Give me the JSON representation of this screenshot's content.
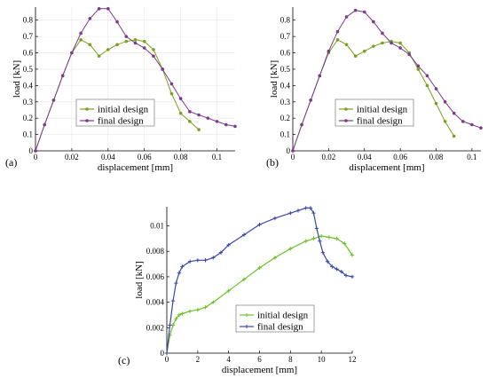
{
  "chart_data": [
    {
      "type": "line",
      "panel_label": "(a)",
      "xlabel": "displacement [mm]",
      "ylabel": "load [kN]",
      "xlim": [
        0,
        0.11
      ],
      "ylim": [
        0,
        0.88
      ],
      "xticks": [
        "0",
        "0.02",
        "0.04",
        "0.06",
        "0.08",
        "0.1"
      ],
      "xtick_values": [
        0,
        0.02,
        0.04,
        0.06,
        0.08,
        0.1
      ],
      "yticks": [
        "0",
        "0.1",
        "0.2",
        "0.3",
        "0.4",
        "0.5",
        "0.6",
        "0.7",
        "0.8"
      ],
      "ytick_values": [
        0,
        0.1,
        0.2,
        0.3,
        0.4,
        0.5,
        0.6,
        0.7,
        0.8
      ],
      "grid": true,
      "legend_position": "lower-center",
      "series": [
        {
          "name": "initial design",
          "color": "#7aa01e",
          "x": [
            0,
            0.005,
            0.01,
            0.015,
            0.02,
            0.025,
            0.03,
            0.035,
            0.04,
            0.045,
            0.05,
            0.055,
            0.06,
            0.065,
            0.07,
            0.075,
            0.08,
            0.085,
            0.09
          ],
          "y": [
            0,
            0.16,
            0.31,
            0.46,
            0.6,
            0.68,
            0.65,
            0.58,
            0.62,
            0.65,
            0.67,
            0.68,
            0.67,
            0.62,
            0.5,
            0.35,
            0.23,
            0.18,
            0.13
          ]
        },
        {
          "name": "final design",
          "color": "#7b3a8c",
          "x": [
            0,
            0.005,
            0.01,
            0.015,
            0.02,
            0.025,
            0.03,
            0.035,
            0.04,
            0.045,
            0.05,
            0.055,
            0.06,
            0.065,
            0.07,
            0.075,
            0.08,
            0.085,
            0.09,
            0.095,
            0.1,
            0.105,
            0.11
          ],
          "y": [
            0,
            0.16,
            0.31,
            0.46,
            0.6,
            0.72,
            0.81,
            0.87,
            0.87,
            0.79,
            0.7,
            0.66,
            0.63,
            0.58,
            0.5,
            0.41,
            0.32,
            0.24,
            0.22,
            0.2,
            0.18,
            0.16,
            0.15
          ]
        }
      ]
    },
    {
      "type": "line",
      "panel_label": "(b)",
      "xlabel": "displacement [mm]",
      "ylabel": "load [kN]",
      "xlim": [
        0,
        0.105
      ],
      "ylim": [
        0,
        0.88
      ],
      "xticks": [
        "0",
        "0.02",
        "0.04",
        "0.06",
        "0.08",
        "0.1"
      ],
      "xtick_values": [
        0,
        0.02,
        0.04,
        0.06,
        0.08,
        0.1
      ],
      "yticks": [
        "0",
        "0.1",
        "0.2",
        "0.3",
        "0.4",
        "0.5",
        "0.6",
        "0.7",
        "0.8"
      ],
      "ytick_values": [
        0,
        0.1,
        0.2,
        0.3,
        0.4,
        0.5,
        0.6,
        0.7,
        0.8
      ],
      "grid": false,
      "legend_position": "lower-center",
      "series": [
        {
          "name": "initial design",
          "color": "#7aa01e",
          "x": [
            0,
            0.005,
            0.01,
            0.015,
            0.02,
            0.025,
            0.03,
            0.035,
            0.04,
            0.045,
            0.05,
            0.055,
            0.06,
            0.065,
            0.07,
            0.075,
            0.08,
            0.085,
            0.09
          ],
          "y": [
            0,
            0.16,
            0.31,
            0.46,
            0.6,
            0.68,
            0.65,
            0.58,
            0.61,
            0.64,
            0.66,
            0.67,
            0.66,
            0.6,
            0.5,
            0.4,
            0.29,
            0.18,
            0.09
          ]
        },
        {
          "name": "final design",
          "color": "#7b3a8c",
          "x": [
            0,
            0.005,
            0.01,
            0.015,
            0.02,
            0.025,
            0.03,
            0.035,
            0.04,
            0.045,
            0.05,
            0.055,
            0.06,
            0.065,
            0.07,
            0.075,
            0.08,
            0.085,
            0.09,
            0.095,
            0.1,
            0.105
          ],
          "y": [
            0,
            0.16,
            0.31,
            0.46,
            0.61,
            0.73,
            0.82,
            0.86,
            0.85,
            0.79,
            0.72,
            0.66,
            0.63,
            0.59,
            0.52,
            0.46,
            0.38,
            0.3,
            0.23,
            0.18,
            0.16,
            0.14
          ]
        }
      ]
    },
    {
      "type": "line",
      "panel_label": "(c)",
      "xlabel": "displacement [mm]",
      "ylabel": "load [kN]",
      "xlim": [
        0,
        12
      ],
      "ylim": [
        0,
        0.0115
      ],
      "xticks": [
        "0",
        "2",
        "4",
        "6",
        "8",
        "10",
        "12"
      ],
      "xtick_values": [
        0,
        2,
        4,
        6,
        8,
        10,
        12
      ],
      "yticks": [
        "0",
        "0.002",
        "0.004",
        "0.006",
        "0.008",
        "0.01"
      ],
      "ytick_values": [
        0,
        0.002,
        0.004,
        0.006,
        0.008,
        0.01
      ],
      "grid": false,
      "legend_position": "lower-right",
      "series": [
        {
          "name": "initial design",
          "color": "#6fbf2a",
          "x": [
            0,
            0.2,
            0.4,
            0.6,
            0.8,
            1.0,
            1.5,
            2.0,
            2.5,
            3.0,
            4.0,
            5.0,
            6.0,
            7.0,
            8.0,
            9.0,
            9.5,
            10.0,
            10.5,
            11.0,
            11.5,
            12.0
          ],
          "y": [
            0,
            0.0014,
            0.0022,
            0.0027,
            0.003,
            0.0031,
            0.0033,
            0.0034,
            0.0036,
            0.004,
            0.0049,
            0.0058,
            0.0067,
            0.0075,
            0.0082,
            0.0088,
            0.009,
            0.0092,
            0.0091,
            0.009,
            0.0086,
            0.0077
          ]
        },
        {
          "name": "final design",
          "color": "#3a46a8",
          "x": [
            0,
            0.2,
            0.4,
            0.6,
            0.8,
            1.0,
            1.5,
            2.0,
            2.5,
            3.0,
            3.5,
            4.0,
            5.0,
            6.0,
            7.0,
            8.0,
            8.5,
            9.0,
            9.3,
            9.5,
            9.7,
            9.9,
            10.1,
            10.4,
            10.7,
            11.0,
            11.3,
            11.6,
            12.0
          ],
          "y": [
            0,
            0.0022,
            0.0041,
            0.0055,
            0.0063,
            0.0068,
            0.0072,
            0.0073,
            0.0073,
            0.0075,
            0.0079,
            0.0085,
            0.0093,
            0.0101,
            0.0106,
            0.011,
            0.0112,
            0.0114,
            0.0114,
            0.011,
            0.0098,
            0.0088,
            0.0079,
            0.0072,
            0.0068,
            0.0066,
            0.0064,
            0.0061,
            0.006
          ]
        }
      ]
    }
  ]
}
